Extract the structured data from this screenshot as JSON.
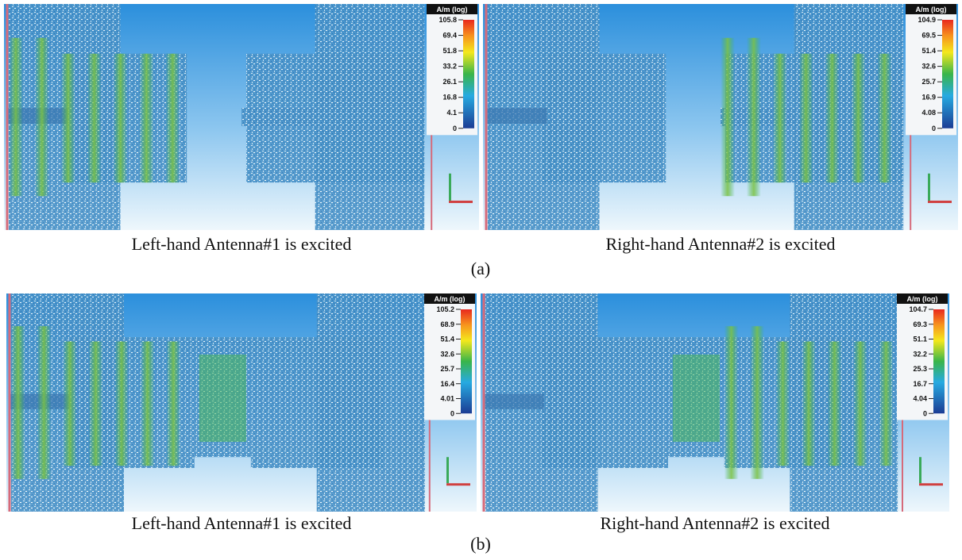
{
  "figures": [
    {
      "label": "(a)",
      "panels": [
        {
          "caption": "Left-hand Antenna#1 is excited",
          "colorbar": {
            "unit": "A/m (log)",
            "ticks": [
              "105.8",
              "69.4",
              "51.8",
              "33.2",
              "26.1",
              "16.8",
              "4.1",
              "0"
            ]
          }
        },
        {
          "caption": "Right-hand Antenna#2 is excited",
          "colorbar": {
            "unit": "A/m (log)",
            "ticks": [
              "104.9",
              "69.5",
              "51.4",
              "32.6",
              "25.7",
              "16.9",
              "4.08",
              "0"
            ]
          }
        }
      ]
    },
    {
      "label": "(b)",
      "panels": [
        {
          "caption": "Left-hand Antenna#1 is excited",
          "colorbar": {
            "unit": "A/m (log)",
            "ticks": [
              "105.2",
              "68.9",
              "51.4",
              "32.6",
              "25.7",
              "16.4",
              "4.01",
              "0"
            ]
          }
        },
        {
          "caption": "Right-hand Antenna#2 is excited",
          "colorbar": {
            "unit": "A/m (log)",
            "ticks": [
              "104.7",
              "69.3",
              "51.1",
              "32.2",
              "25.3",
              "16.7",
              "4.04",
              "0"
            ]
          }
        }
      ]
    }
  ]
}
